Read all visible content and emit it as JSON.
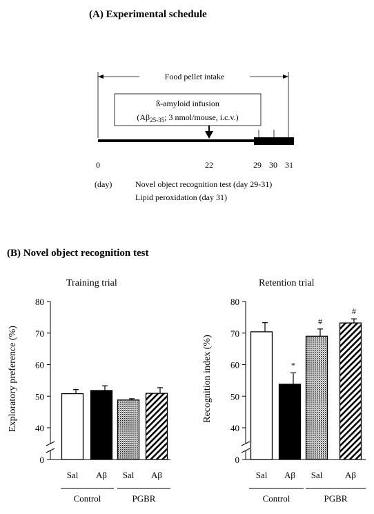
{
  "panel_a": {
    "header": "(A) Experimental schedule",
    "food_label": "Food pellet intake",
    "infusion_line1": "ß-amyloid infusion",
    "infusion_line2_pre": "(Aβ",
    "infusion_line2_sub": "25-35",
    "infusion_line2_post": "; 3 nmol/mouse, i.c.v.)",
    "days": [
      "0",
      "22",
      "29",
      "30",
      "31"
    ],
    "day_unit": "(day)",
    "test_line1": "Novel object recognition test (day 29-31)",
    "test_line2": "Lipid peroxidation (day 31)"
  },
  "panel_b": {
    "header": "(B) Novel object recognition test"
  },
  "chart_data": [
    {
      "type": "bar",
      "title": "Training trial",
      "ylabel": "Exploratory preference (%)",
      "ylim": [
        0,
        80
      ],
      "axis_break": [
        0,
        40
      ],
      "yticks": [
        0,
        40,
        50,
        60,
        70,
        80
      ],
      "categories": [
        "Sal",
        "Aβ",
        "Sal",
        "Aβ"
      ],
      "groups": [
        "Control",
        "PGBR"
      ],
      "values": [
        50.8,
        51.8,
        48.8,
        50.9
      ],
      "errors": [
        1.3,
        1.5,
        0.4,
        1.8
      ],
      "markers": [
        "",
        "",
        "",
        ""
      ],
      "fills": [
        "white",
        "black",
        "dotted",
        "hatched"
      ]
    },
    {
      "type": "bar",
      "title": "Retention trial",
      "ylabel": "Recognition index (%)",
      "ylim": [
        0,
        80
      ],
      "axis_break": [
        0,
        40
      ],
      "yticks": [
        0,
        40,
        50,
        60,
        70,
        80
      ],
      "categories": [
        "Sal",
        "Aβ",
        "Sal",
        "Aβ"
      ],
      "groups": [
        "Control",
        "PGBR"
      ],
      "values": [
        70.4,
        53.8,
        69.0,
        73.2
      ],
      "errors": [
        2.9,
        3.6,
        2.3,
        1.3
      ],
      "markers": [
        "",
        "*",
        "#",
        "#"
      ],
      "fills": [
        "white",
        "black",
        "dotted",
        "hatched"
      ]
    }
  ]
}
